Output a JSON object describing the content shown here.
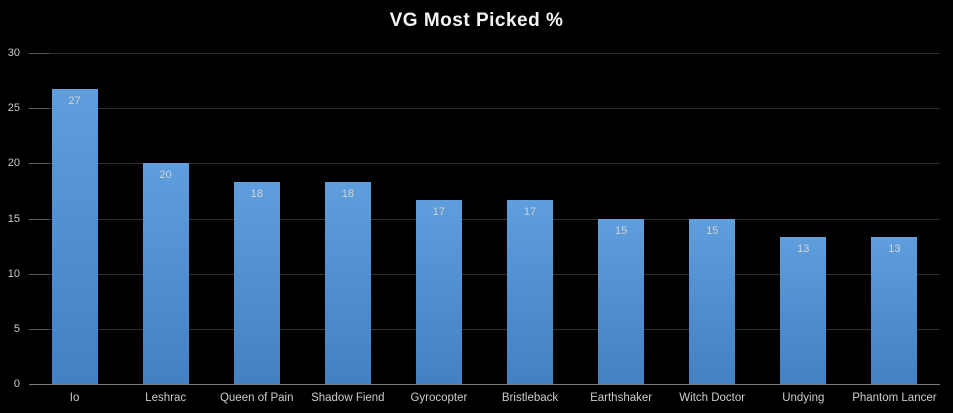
{
  "chart_data": {
    "type": "bar",
    "title": "VG Most Picked %",
    "categories": [
      "Io",
      "Leshrac",
      "Queen of Pain",
      "Shadow Fiend",
      "Gyrocopter",
      "Bristleback",
      "Earthshaker",
      "Witch Doctor",
      "Undying",
      "Phantom Lancer"
    ],
    "values": [
      27,
      20,
      18,
      18,
      17,
      17,
      15,
      15,
      13,
      13
    ],
    "values_plotted": [
      26.7,
      20,
      18.3,
      18.3,
      16.7,
      16.7,
      15,
      15,
      13.3,
      13.3
    ],
    "data_labels": [
      "27",
      "20",
      "18",
      "18",
      "17",
      "17",
      "15",
      "15",
      "13",
      "13"
    ],
    "xlabel": "",
    "ylabel": "",
    "ylim": [
      0,
      30
    ],
    "yticks": [
      0,
      5,
      10,
      15,
      20,
      25,
      30
    ],
    "grid": true,
    "legend": false
  },
  "colors": {
    "background": "#000000",
    "bar_gradient_top": "#5f9edd",
    "bar_gradient_bottom": "#4281c2",
    "gridline": "#2f2f2f",
    "tick": "#5a5a5a",
    "axis_line": "#7c7c7c",
    "title_text": "#f2f2f2",
    "axis_label_text": "#cbcbcb",
    "data_label_text": "#d2d2d2"
  }
}
